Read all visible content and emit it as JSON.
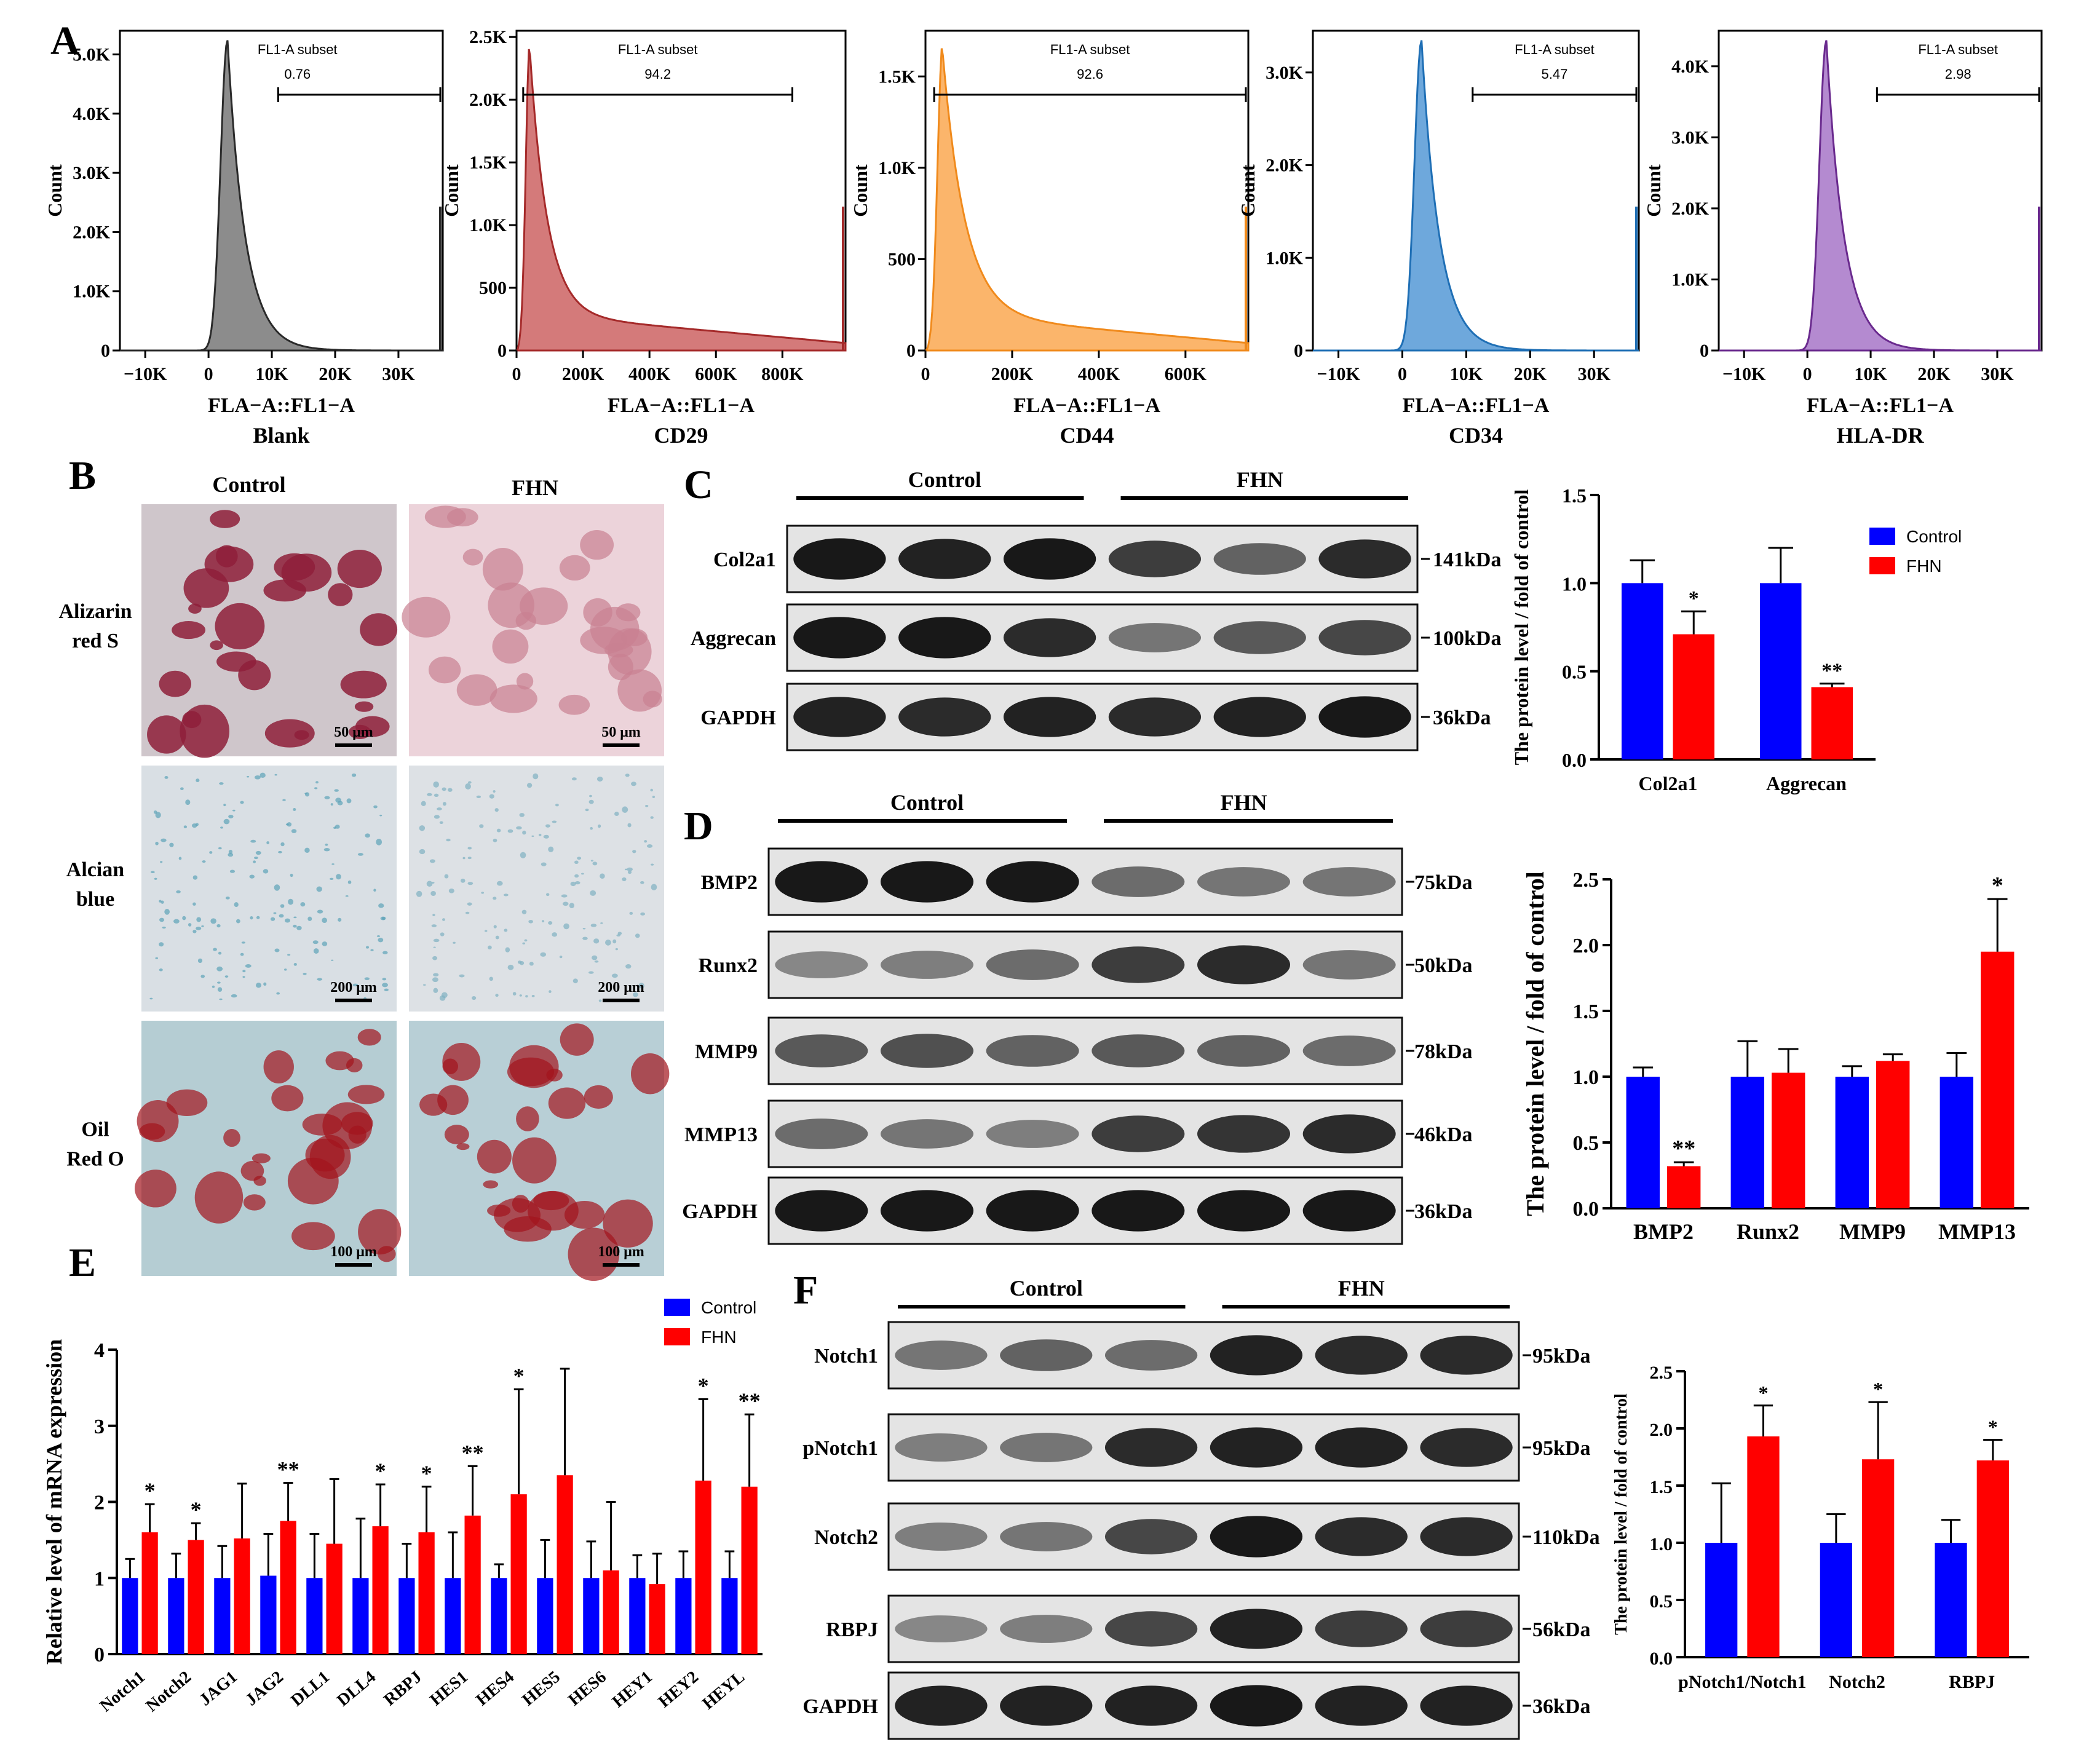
{
  "figure": {
    "panel_letters": [
      "A",
      "B",
      "C",
      "D",
      "E",
      "F"
    ],
    "tab_labels": []
  },
  "flow": {
    "subset_label": "FL1-A subset",
    "xlabel": "FLA−A::FL1−A",
    "ylabel": "Count",
    "panels": [
      {
        "name": "Blank",
        "color": "#2a2a2a",
        "fill": "#8c8c8c",
        "subset_value": "0.76",
        "peak_x": 3,
        "xlim": [
          -14,
          37
        ],
        "xticks": [
          "−10K",
          "0",
          "10K",
          "20K",
          "30K"
        ],
        "xtick_vals": [
          -10,
          0,
          10,
          20,
          30
        ],
        "ylim": [
          0,
          5.4
        ],
        "yticks": [
          "0",
          "1.0K",
          "2.0K",
          "3.0K",
          "4.0K",
          "5.0K"
        ],
        "ytick_vals": [
          0,
          1,
          2,
          3,
          4,
          5
        ],
        "gate": [
          11,
          37
        ]
      },
      {
        "name": "CD29",
        "color": "#a52a2a",
        "fill": "#d47a7a",
        "subset_value": "94.2",
        "peak_x": 40,
        "xlim": [
          0,
          990
        ],
        "xticks": [
          "0",
          "200K",
          "400K",
          "600K",
          "800K"
        ],
        "xtick_vals": [
          0,
          200,
          400,
          600,
          800
        ],
        "ylim": [
          0,
          2.55
        ],
        "yticks": [
          "0",
          "500",
          "1.0K",
          "1.5K",
          "2.0K",
          "2.5K"
        ],
        "ytick_vals": [
          0,
          0.5,
          1,
          1.5,
          2,
          2.5
        ],
        "gate": [
          20,
          830
        ]
      },
      {
        "name": "CD44",
        "color": "#f08a1c",
        "fill": "#fbb56b",
        "subset_value": "92.6",
        "peak_x": 40,
        "xlim": [
          0,
          745
        ],
        "xticks": [
          "0",
          "200K",
          "400K",
          "600K"
        ],
        "xtick_vals": [
          0,
          200,
          400,
          600
        ],
        "ylim": [
          0,
          1.75
        ],
        "yticks": [
          "0",
          "500",
          "1.0K",
          "1.5K"
        ],
        "ytick_vals": [
          0,
          0.5,
          1,
          1.5
        ],
        "gate": [
          20,
          745
        ]
      },
      {
        "name": "CD34",
        "color": "#1f6fb5",
        "fill": "#6ea8dc",
        "subset_value": "5.47",
        "peak_x": 3,
        "xlim": [
          -14,
          37
        ],
        "xticks": [
          "−10K",
          "0",
          "10K",
          "20K",
          "30K"
        ],
        "xtick_vals": [
          -10,
          0,
          10,
          20,
          30
        ],
        "ylim": [
          0,
          3.45
        ],
        "yticks": [
          "0",
          "1.0K",
          "2.0K",
          "3.0K"
        ],
        "ytick_vals": [
          0,
          1,
          2,
          3
        ],
        "gate": [
          11,
          37
        ]
      },
      {
        "name": "HLA-DR",
        "color": "#6a2a8e",
        "fill": "#b48ad0",
        "subset_value": "2.98",
        "peak_x": 3,
        "xlim": [
          -14,
          37
        ],
        "xticks": [
          "−10K",
          "0",
          "10K",
          "20K",
          "30K"
        ],
        "xtick_vals": [
          -10,
          0,
          10,
          20,
          30
        ],
        "ylim": [
          0,
          4.5
        ],
        "yticks": [
          "0",
          "1.0K",
          "2.0K",
          "3.0K",
          "4.0K"
        ],
        "ytick_vals": [
          0,
          1,
          2,
          3,
          4
        ],
        "gate": [
          11,
          37
        ]
      }
    ]
  },
  "staining": {
    "columns": [
      "Control",
      "FHN"
    ],
    "rows": [
      {
        "label_lines": [
          "Alizarin",
          "red S"
        ],
        "scales": [
          "50 μm",
          "50 μm"
        ],
        "bg": [
          "#cfc6cb",
          "#ecd3da"
        ],
        "blob": [
          "#8e1f3a",
          "#c98092"
        ]
      },
      {
        "label_lines": [
          "Alcian",
          "blue"
        ],
        "scales": [
          "200 μm",
          "200 μm"
        ],
        "bg": [
          "#d9dfe4",
          "#dde1e5"
        ],
        "blob": [
          "#5ca3b8",
          "#7fb0c2"
        ]
      },
      {
        "label_lines": [
          "Oil",
          "Red O"
        ],
        "scales": [
          "100 μm",
          "100 μm"
        ],
        "bg": [
          "#b5cdd3",
          "#b8cfd6"
        ],
        "blob": [
          "#a3141c",
          "#a3141c"
        ]
      }
    ]
  },
  "western": {
    "C": {
      "groups": [
        "Control",
        "FHN"
      ],
      "bands": [
        {
          "label": "Col2a1",
          "kda": "141kDa",
          "intensity": [
            0.95,
            0.9,
            0.95,
            0.75,
            0.55,
            0.85
          ]
        },
        {
          "label": "Aggrecan",
          "kda": "100kDa",
          "intensity": [
            0.95,
            0.95,
            0.85,
            0.45,
            0.6,
            0.7
          ]
        },
        {
          "label": "GAPDH",
          "kda": "36kDa",
          "intensity": [
            0.9,
            0.85,
            0.9,
            0.85,
            0.9,
            0.95
          ]
        }
      ]
    },
    "D": {
      "groups": [
        "Control",
        "FHN"
      ],
      "bands": [
        {
          "label": "BMP2",
          "kda": "75kDa",
          "intensity": [
            0.95,
            0.95,
            0.95,
            0.5,
            0.45,
            0.45
          ]
        },
        {
          "label": "Runx2",
          "kda": "50kDa",
          "intensity": [
            0.35,
            0.4,
            0.5,
            0.75,
            0.85,
            0.45
          ]
        },
        {
          "label": "MMP9",
          "kda": "78kDa",
          "intensity": [
            0.6,
            0.65,
            0.55,
            0.6,
            0.55,
            0.5
          ]
        },
        {
          "label": "MMP13",
          "kda": "46kDa",
          "intensity": [
            0.5,
            0.45,
            0.4,
            0.75,
            0.8,
            0.85
          ]
        },
        {
          "label": "GAPDH",
          "kda": "36kDa",
          "intensity": [
            0.95,
            0.95,
            0.95,
            0.95,
            0.95,
            0.95
          ]
        }
      ]
    },
    "F": {
      "groups": [
        "Control",
        "FHN"
      ],
      "bands": [
        {
          "label": "Notch1",
          "kda": "95kDa",
          "intensity": [
            0.45,
            0.55,
            0.5,
            0.9,
            0.85,
            0.85
          ]
        },
        {
          "label": "pNotch1",
          "kda": "95kDa",
          "intensity": [
            0.4,
            0.45,
            0.85,
            0.9,
            0.9,
            0.85
          ]
        },
        {
          "label": "Notch2",
          "kda": "110kDa",
          "intensity": [
            0.4,
            0.45,
            0.7,
            0.95,
            0.85,
            0.85
          ]
        },
        {
          "label": "RBPJ",
          "kda": "56kDa",
          "intensity": [
            0.35,
            0.4,
            0.7,
            0.9,
            0.75,
            0.75
          ]
        },
        {
          "label": "GAPDH",
          "kda": "36kDa",
          "intensity": [
            0.9,
            0.9,
            0.9,
            0.95,
            0.9,
            0.9
          ]
        }
      ]
    }
  },
  "chart_data": [
    {
      "panel": "C",
      "type": "bar",
      "ylabel": "The protein level / fold of control",
      "categories": [
        "Col2a1",
        "Aggrecan"
      ],
      "ylim": [
        0,
        1.5
      ],
      "yticks": [
        "0.0",
        "0.5",
        "1.0",
        "1.5"
      ],
      "ytick_vals": [
        0,
        0.5,
        1,
        1.5
      ],
      "legend": "top-right",
      "series": [
        {
          "name": "Control",
          "color": "#0000ff",
          "values": [
            1.0,
            1.0
          ],
          "errors": [
            0.13,
            0.2
          ],
          "stars": [
            "",
            ""
          ]
        },
        {
          "name": "FHN",
          "color": "#ff0000",
          "values": [
            0.71,
            0.41
          ],
          "errors": [
            0.13,
            0.02
          ],
          "stars": [
            "*",
            "**"
          ]
        }
      ]
    },
    {
      "panel": "D",
      "type": "bar",
      "ylabel": "The protein level / fold of control",
      "categories": [
        "BMP2",
        "Runx2",
        "MMP9",
        "MMP13"
      ],
      "ylim": [
        0,
        2.5
      ],
      "yticks": [
        "0.0",
        "0.5",
        "1.0",
        "1.5",
        "2.0",
        "2.5"
      ],
      "ytick_vals": [
        0,
        0.5,
        1,
        1.5,
        2,
        2.5
      ],
      "series": [
        {
          "name": "Control",
          "color": "#0000ff",
          "values": [
            1.0,
            1.0,
            1.0,
            1.0
          ],
          "errors": [
            0.07,
            0.27,
            0.08,
            0.18
          ],
          "stars": [
            "",
            "",
            "",
            ""
          ]
        },
        {
          "name": "FHN",
          "color": "#ff0000",
          "values": [
            0.32,
            1.03,
            1.12,
            1.95
          ],
          "errors": [
            0.03,
            0.18,
            0.05,
            0.4
          ],
          "stars": [
            "**",
            "",
            "",
            "*"
          ]
        }
      ]
    },
    {
      "panel": "E",
      "type": "bar",
      "ylabel": "Relative level of mRNA expression",
      "categories": [
        "Notch1",
        "Notch2",
        "JAG1",
        "JAG2",
        "DLL1",
        "DLL4",
        "RBPJ",
        "HES1",
        "HES4",
        "HES5",
        "HES6",
        "HEY1",
        "HEY2",
        "HEYL"
      ],
      "ylim": [
        0,
        4
      ],
      "yticks": [
        "0",
        "1",
        "2",
        "3",
        "4"
      ],
      "ytick_vals": [
        0,
        1,
        2,
        3,
        4
      ],
      "legend": "top-right",
      "series": [
        {
          "name": "Control",
          "color": "#0000ff",
          "values": [
            1.0,
            1.0,
            1.0,
            1.03,
            1.0,
            1.0,
            1.0,
            1.0,
            1.0,
            1.0,
            1.0,
            1.0,
            1.0,
            1.0
          ],
          "errors": [
            0.25,
            0.32,
            0.42,
            0.55,
            0.58,
            0.78,
            0.45,
            0.6,
            0.18,
            0.5,
            0.48,
            0.3,
            0.35,
            0.35
          ],
          "stars": [
            "",
            "",
            "",
            "",
            "",
            "",
            "",
            "",
            "",
            "",
            "",
            "",
            "",
            ""
          ]
        },
        {
          "name": "FHN",
          "color": "#ff0000",
          "values": [
            1.6,
            1.5,
            1.52,
            1.75,
            1.45,
            1.68,
            1.6,
            1.82,
            2.1,
            2.35,
            1.1,
            0.92,
            2.28,
            2.2
          ],
          "errors": [
            0.37,
            0.22,
            0.72,
            0.5,
            0.85,
            0.55,
            0.6,
            0.65,
            1.38,
            1.4,
            0.9,
            0.4,
            1.07,
            0.95
          ],
          "stars": [
            "*",
            "*",
            "",
            "**",
            "",
            "*",
            "*",
            "**",
            "*",
            "",
            "",
            "",
            "*",
            "**"
          ]
        }
      ]
    },
    {
      "panel": "F",
      "type": "bar",
      "ylabel": "The protein level / fold of control",
      "categories": [
        "pNotch1/Notch1",
        "Notch2",
        "RBPJ"
      ],
      "ylim": [
        0,
        2.5
      ],
      "yticks": [
        "0.0",
        "0.5",
        "1.0",
        "1.5",
        "2.0",
        "2.5"
      ],
      "ytick_vals": [
        0,
        0.5,
        1,
        1.5,
        2,
        2.5
      ],
      "series": [
        {
          "name": "Control",
          "color": "#0000ff",
          "values": [
            1.0,
            1.0,
            1.0
          ],
          "errors": [
            0.52,
            0.25,
            0.2
          ],
          "stars": [
            "",
            "",
            ""
          ]
        },
        {
          "name": "FHN",
          "color": "#ff0000",
          "values": [
            1.93,
            1.73,
            1.72
          ],
          "errors": [
            0.27,
            0.5,
            0.18
          ],
          "stars": [
            "*",
            "*",
            "*"
          ]
        }
      ]
    }
  ]
}
